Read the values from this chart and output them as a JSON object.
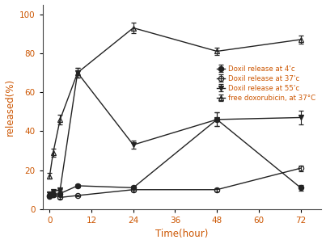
{
  "title": "",
  "xlabel": "Time(hour)",
  "ylabel": "released(%)",
  "xlim": [
    -2,
    78
  ],
  "ylim": [
    0,
    105
  ],
  "xticks": [
    0,
    12,
    24,
    36,
    48,
    60,
    72
  ],
  "yticks": [
    0,
    20,
    40,
    60,
    80,
    100
  ],
  "series": [
    {
      "label": "Doxil release at 4'c",
      "x": [
        0,
        1,
        3,
        8,
        24,
        48,
        72
      ],
      "y": [
        6.5,
        7.5,
        8,
        12,
        11,
        46,
        11
      ],
      "yerr": [
        0.5,
        0.5,
        0.5,
        0.7,
        0.8,
        3.5,
        1.5
      ],
      "marker": "o",
      "fillstyle": "full",
      "color": "#222222",
      "linestyle": "-",
      "linewidth": 1.0,
      "markersize": 4.5
    },
    {
      "label": "Doxil release at 37'c",
      "x": [
        0,
        1,
        3,
        8,
        24,
        48,
        72
      ],
      "y": [
        7,
        7.5,
        6,
        7,
        10,
        10,
        21
      ],
      "yerr": [
        0.5,
        0.5,
        0.5,
        0.5,
        0.8,
        0.8,
        1.5
      ],
      "marker": "o",
      "fillstyle": "none",
      "color": "#222222",
      "linestyle": "-",
      "linewidth": 1.0,
      "markersize": 4.5
    },
    {
      "label": "Doxil release at 55'c",
      "x": [
        0,
        1,
        3,
        8,
        24,
        48,
        72
      ],
      "y": [
        8,
        9,
        10,
        70,
        33,
        46,
        47
      ],
      "yerr": [
        0.5,
        0.5,
        0.5,
        2.5,
        2.0,
        3.5,
        3.5
      ],
      "marker": "v",
      "fillstyle": "full",
      "color": "#222222",
      "linestyle": "-",
      "linewidth": 1.0,
      "markersize": 4.5
    },
    {
      "label": "free doxorubicin, at 37°C",
      "x": [
        0,
        1,
        3,
        8,
        24,
        48,
        72
      ],
      "y": [
        17,
        29,
        46,
        70,
        93,
        81,
        87
      ],
      "yerr": [
        1.5,
        2.0,
        2.5,
        2.5,
        2.5,
        2.0,
        2.0
      ],
      "marker": "^",
      "fillstyle": "none",
      "color": "#222222",
      "linestyle": "-",
      "linewidth": 1.0,
      "markersize": 4.5
    }
  ],
  "legend_labels_color": "#cc5500",
  "axis_label_color": "#cc5500",
  "tick_label_color": "#cc5500",
  "background_color": "#ffffff"
}
